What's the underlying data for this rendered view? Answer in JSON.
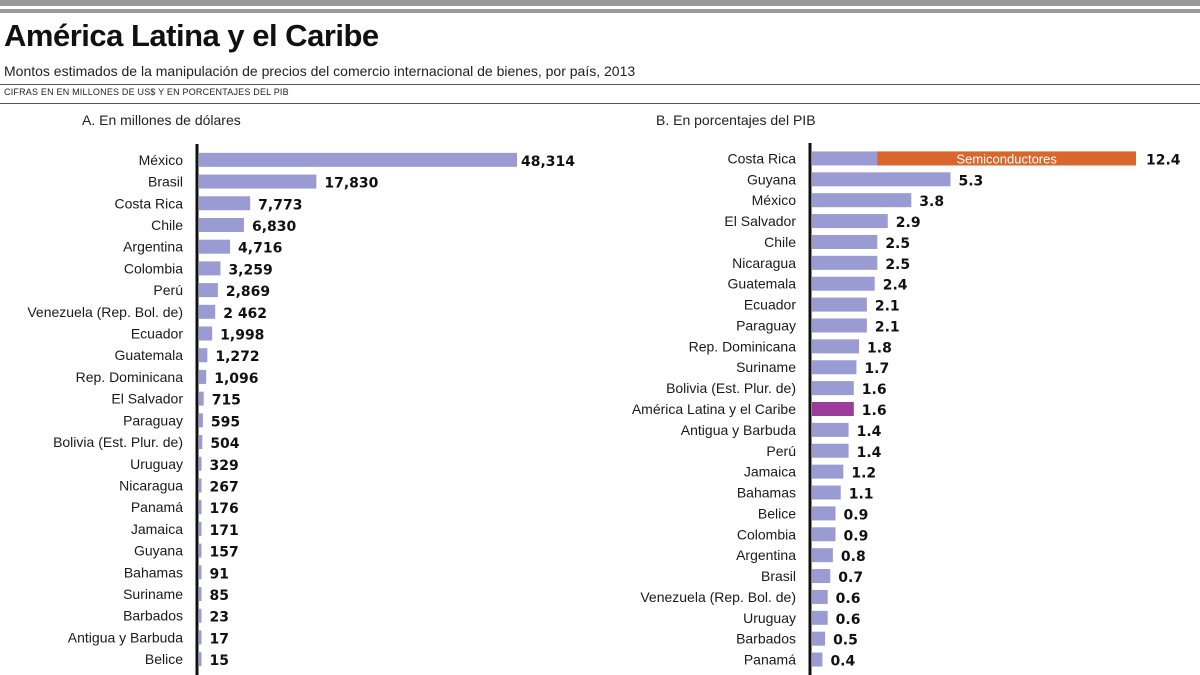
{
  "title": "América Latina y el Caribe",
  "subtitle": "Montos estimados de la manipulación de precios del comercio internacional de bienes, por país, 2013",
  "units_note": "CIFRAS EN EN MILLONES DE US$ Y EN PORCENTAJES DEL PIB",
  "colors": {
    "bar": "#9b9bd3",
    "highlight": "#9b3b9b",
    "annotation": "#d9662c",
    "axis": "#111111"
  },
  "chart_data": [
    {
      "type": "bar",
      "orientation": "horizontal",
      "title": "A. En millones de dólares",
      "xlabel": "",
      "ylabel": "",
      "xlim": [
        0,
        48314
      ],
      "categories": [
        "México",
        "Brasil",
        "Costa Rica",
        "Chile",
        "Argentina",
        "Colombia",
        "Perú",
        "Venezuela (Rep. Bol. de)",
        "Ecuador",
        "Guatemala",
        "Rep. Dominicana",
        "El Salvador",
        "Paraguay",
        "Bolivia (Est. Plur. de)",
        "Uruguay",
        "Nicaragua",
        "Panamá",
        "Jamaica",
        "Guyana",
        "Bahamas",
        "Suriname",
        "Barbados",
        "Antigua y Barbuda",
        "Belice"
      ],
      "values": [
        48314,
        17830,
        7773,
        6830,
        4716,
        3259,
        2869,
        2462,
        1998,
        1272,
        1096,
        715,
        595,
        504,
        329,
        267,
        176,
        171,
        157,
        91,
        85,
        23,
        17,
        15
      ],
      "labels": [
        "48,314",
        "17,830",
        "7,773",
        "6,830",
        "4,716",
        "3,259",
        "2,869",
        "2 462",
        "1,998",
        "1,272",
        "1,096",
        "715",
        "595",
        "504",
        "329",
        "267",
        "176",
        "171",
        "157",
        "91",
        "85",
        "23",
        "17",
        "15"
      ]
    },
    {
      "type": "bar",
      "orientation": "horizontal",
      "title": "B. En porcentajes del PIB",
      "xlabel": "",
      "ylabel": "",
      "categories": [
        "Costa Rica",
        "Guyana",
        "México",
        "El Salvador",
        "Chile",
        "Nicaragua",
        "Guatemala",
        "Ecuador",
        "Paraguay",
        "Rep. Dominicana",
        "Suriname",
        "Bolivia (Est. Plur. de)",
        "América Latina y el Caribe",
        "Antigua y Barbuda",
        "Perú",
        "Jamaica",
        "Bahamas",
        "Belice",
        "Colombia",
        "Argentina",
        "Brasil",
        "Venezuela (Rep. Bol. de)",
        "Uruguay",
        "Barbados",
        "Panamá"
      ],
      "values": [
        12.4,
        5.3,
        3.8,
        2.9,
        2.5,
        2.5,
        2.4,
        2.1,
        2.1,
        1.8,
        1.7,
        1.6,
        1.6,
        1.4,
        1.4,
        1.2,
        1.1,
        0.9,
        0.9,
        0.8,
        0.7,
        0.6,
        0.6,
        0.5,
        0.4
      ],
      "labels": [
        "12.4",
        "5.3",
        "3.8",
        "2.9",
        "2.5",
        "2.5",
        "2.4",
        "2.1",
        "2.1",
        "1.8",
        "1.7",
        "1.6",
        "1.6",
        "1.4",
        "1.4",
        "1.2",
        "1.1",
        "0.9",
        "0.9",
        "0.8",
        "0.7",
        "0.6",
        "0.6",
        "0.5",
        "0.4"
      ],
      "highlight_category": "América Latina y el Caribe",
      "annotations": [
        {
          "category": "Costa Rica",
          "segment_start": 2.5,
          "segment_end": 12.4,
          "label": "Semiconductores"
        }
      ]
    }
  ]
}
